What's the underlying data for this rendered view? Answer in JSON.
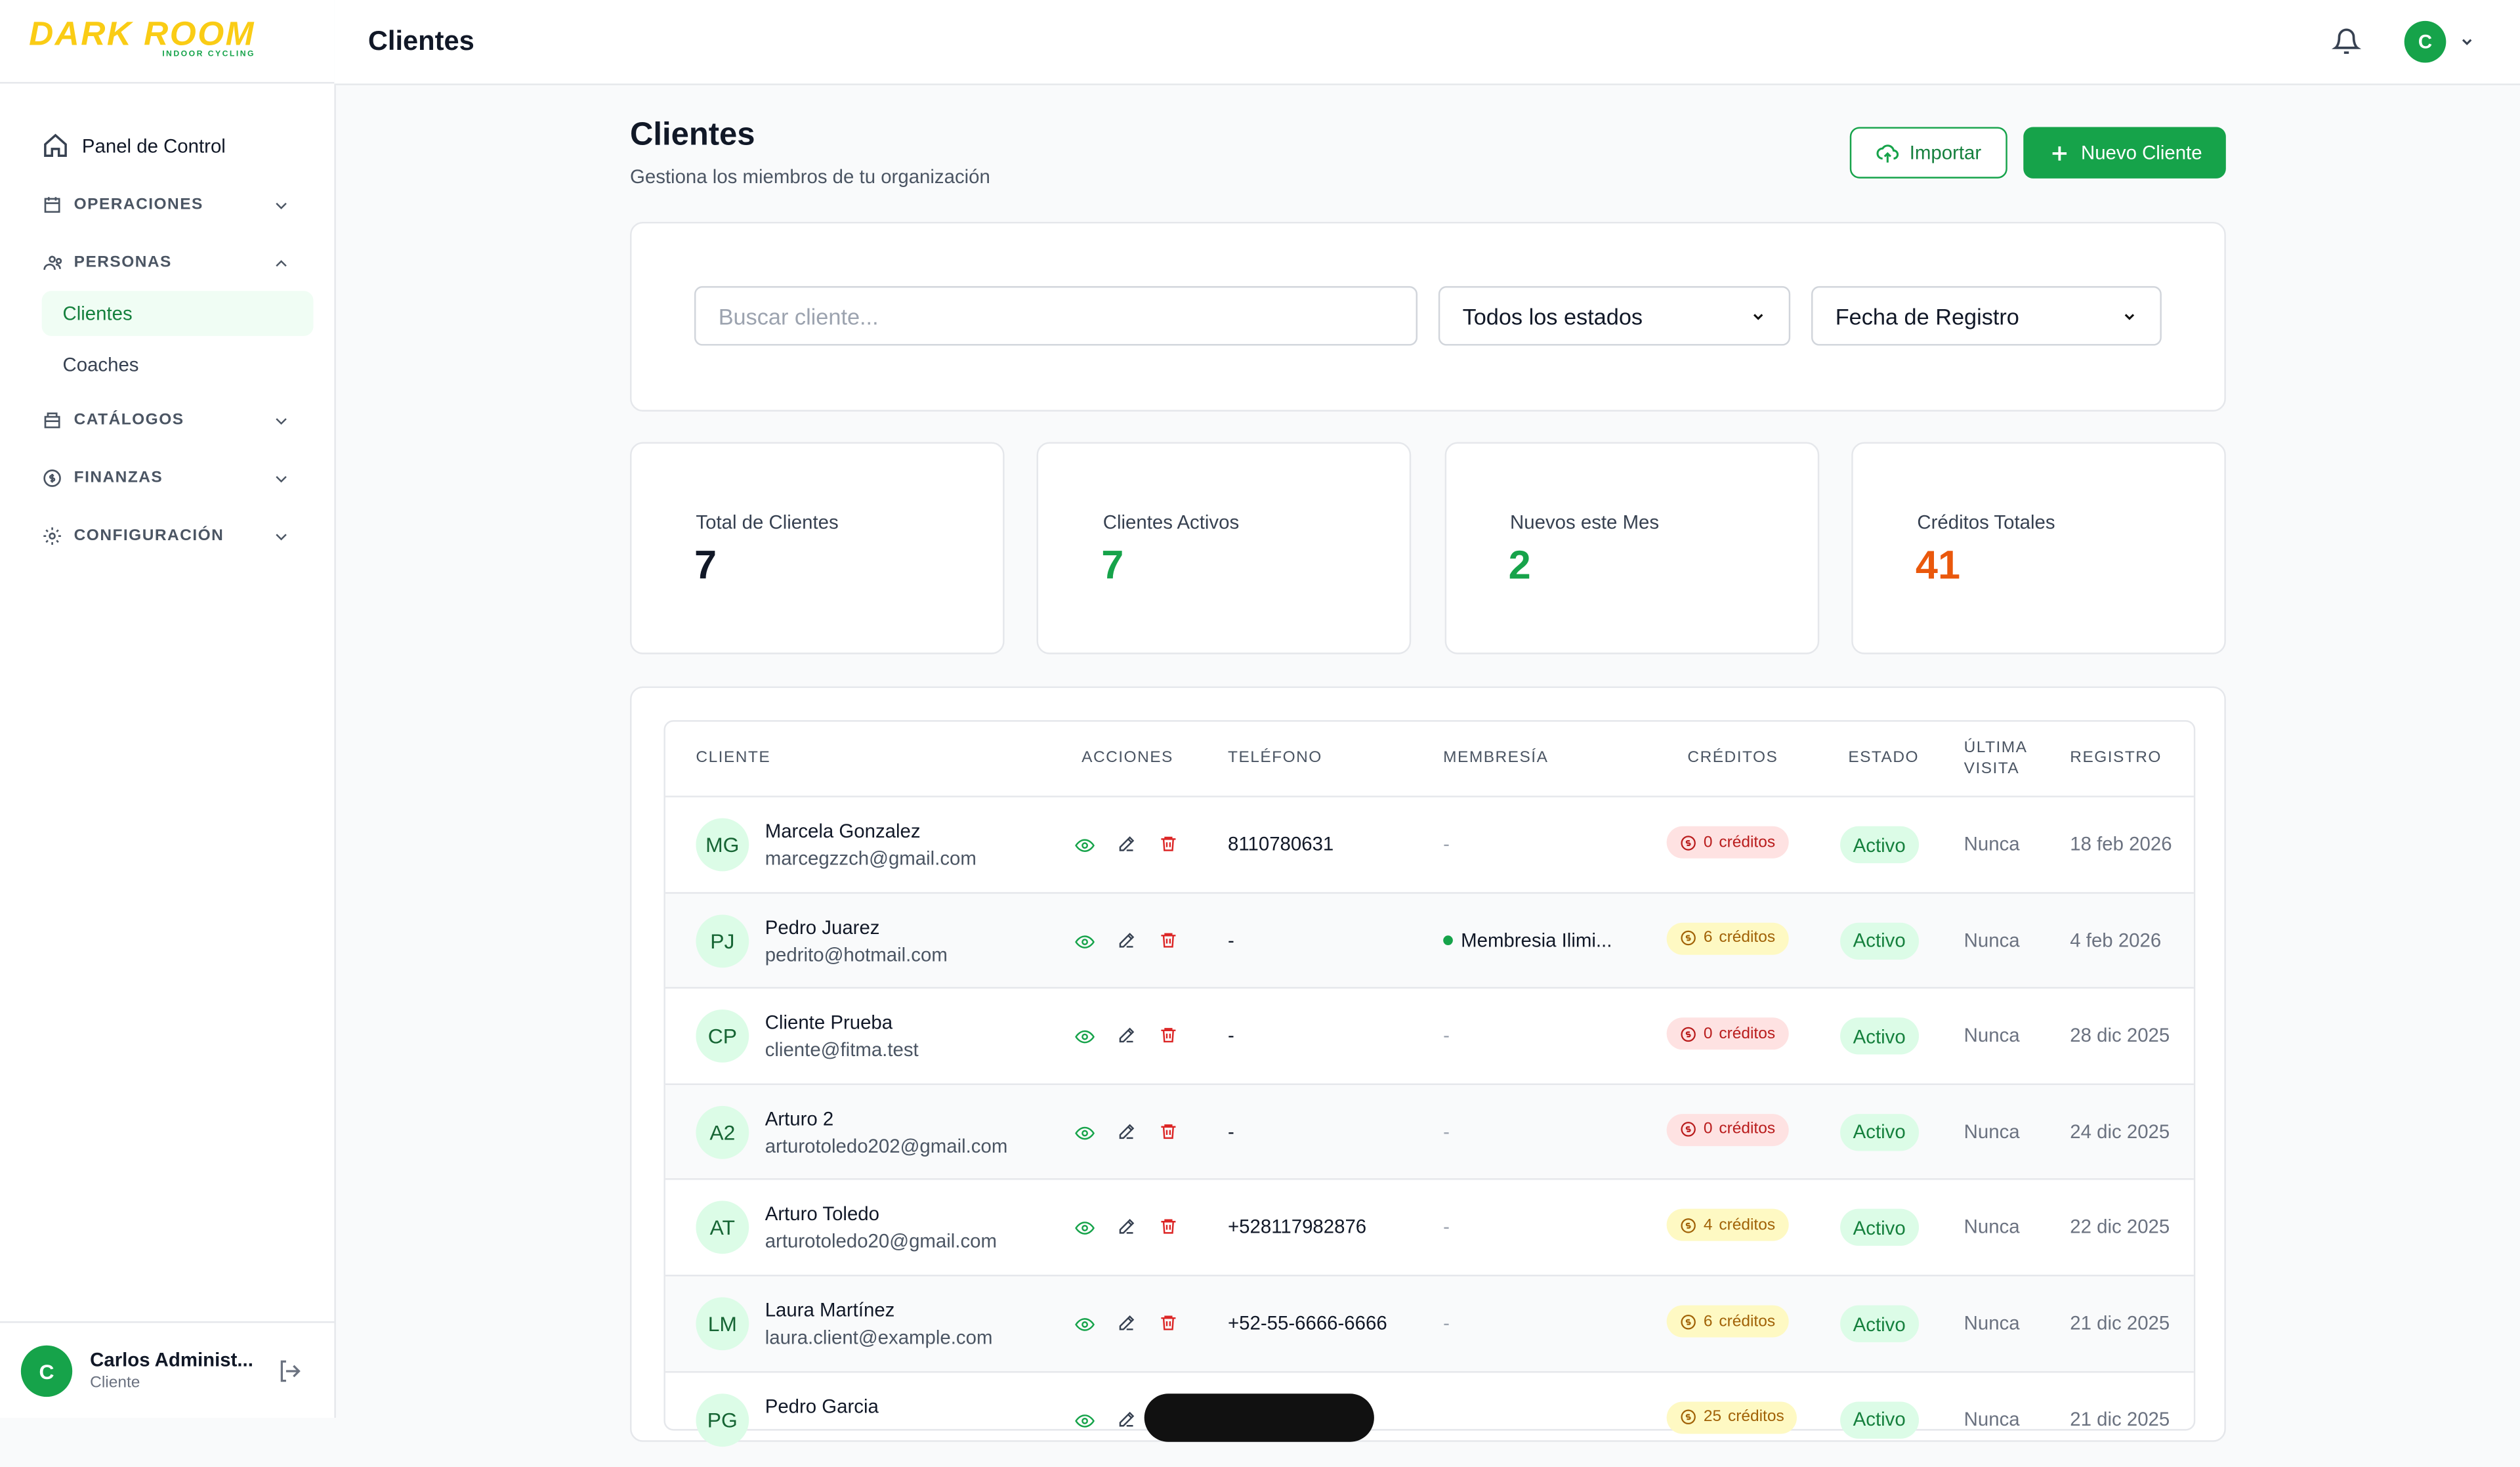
{
  "sidebar": {
    "logo": "DARK ROOM",
    "logo_sub": "INDOOR CYCLING",
    "items": [
      "Panel de Control"
    ],
    "sections": [
      "OPERACIONES",
      "PERSONAS",
      "CATÁLOGOS",
      "FINANZAS",
      "CONFIGURACIÓN"
    ],
    "sub_items": [
      "Clientes",
      "Coaches"
    ],
    "user": {
      "initial": "C",
      "name": "Carlos Administ...",
      "role": "Cliente"
    }
  },
  "header": {
    "title": "Clientes",
    "avatar": "C"
  },
  "page": {
    "title": "Clientes",
    "subtitle": "Gestiona los miembros de tu organización",
    "buttons": [
      "Importar",
      "Nuevo Cliente"
    ]
  },
  "filters": {
    "search_placeholder": "Buscar cliente...",
    "status": "Todos los estados",
    "sort": "Fecha de Registro"
  },
  "stats": [
    {
      "label": "Total de Clientes",
      "value": 7,
      "color": "#111827"
    },
    {
      "label": "Clientes Activos",
      "value": 7,
      "color": "#16a34a"
    },
    {
      "label": "Nuevos este Mes",
      "value": 2,
      "color": "#16a34a"
    },
    {
      "label": "Créditos Totales",
      "value": 41,
      "color": "#ea580c"
    }
  ],
  "table": {
    "columns": [
      "CLIENTE",
      "ACCIONES",
      "TELÉFONO",
      "MEMBRESÍA",
      "CRÉDITOS",
      "ESTADO",
      "ÚLTIMA VISITA",
      "REGISTRO"
    ],
    "rows": [
      {
        "initials": "MG",
        "name": "Marcela Gonzalez",
        "email": "marcegzzch@gmail.com",
        "phone": "8110780631",
        "membership": "-",
        "credits": "0",
        "credits_unit": "créditos",
        "status": "Activo",
        "last_visit": "Nunca",
        "registered": "18 feb 2026"
      },
      {
        "initials": "PJ",
        "name": "Pedro Juarez",
        "email": "pedrito@hotmail.com",
        "phone": "-",
        "membership": "Membresia Ilimi...",
        "credits": "6",
        "credits_unit": "créditos",
        "status": "Activo",
        "last_visit": "Nunca",
        "registered": "4 feb 2026"
      },
      {
        "initials": "CP",
        "name": "Cliente Prueba",
        "email": "cliente@fitma.test",
        "phone": "-",
        "membership": "-",
        "credits": "0",
        "credits_unit": "créditos",
        "status": "Activo",
        "last_visit": "Nunca",
        "registered": "28 dic 2025"
      },
      {
        "initials": "A2",
        "name": "Arturo 2",
        "email": "arturotoledo202@gmail.com",
        "phone": "-",
        "membership": "-",
        "credits": "0",
        "credits_unit": "créditos",
        "status": "Activo",
        "last_visit": "Nunca",
        "registered": "24 dic 2025"
      },
      {
        "initials": "AT",
        "name": "Arturo Toledo",
        "email": "arturotoledo20@gmail.com",
        "phone": "+528117982876",
        "membership": "-",
        "credits": "4",
        "credits_unit": "créditos",
        "status": "Activo",
        "last_visit": "Nunca",
        "registered": "22 dic 2025"
      },
      {
        "initials": "LM",
        "name": "Laura Martínez",
        "email": "laura.client@example.com",
        "phone": "+52-55-6666-6666",
        "membership": "-",
        "credits": "6",
        "credits_unit": "créditos",
        "status": "Activo",
        "last_visit": "Nunca",
        "registered": "21 dic 2025"
      },
      {
        "initials": "PG",
        "name": "Pedro Garcia",
        "email": null,
        "phone": null,
        "membership": null,
        "credits": "25",
        "credits_unit": "créditos",
        "status": "Activo",
        "last_visit": "Nunca",
        "registered": "21 dic 2025"
      }
    ]
  }
}
